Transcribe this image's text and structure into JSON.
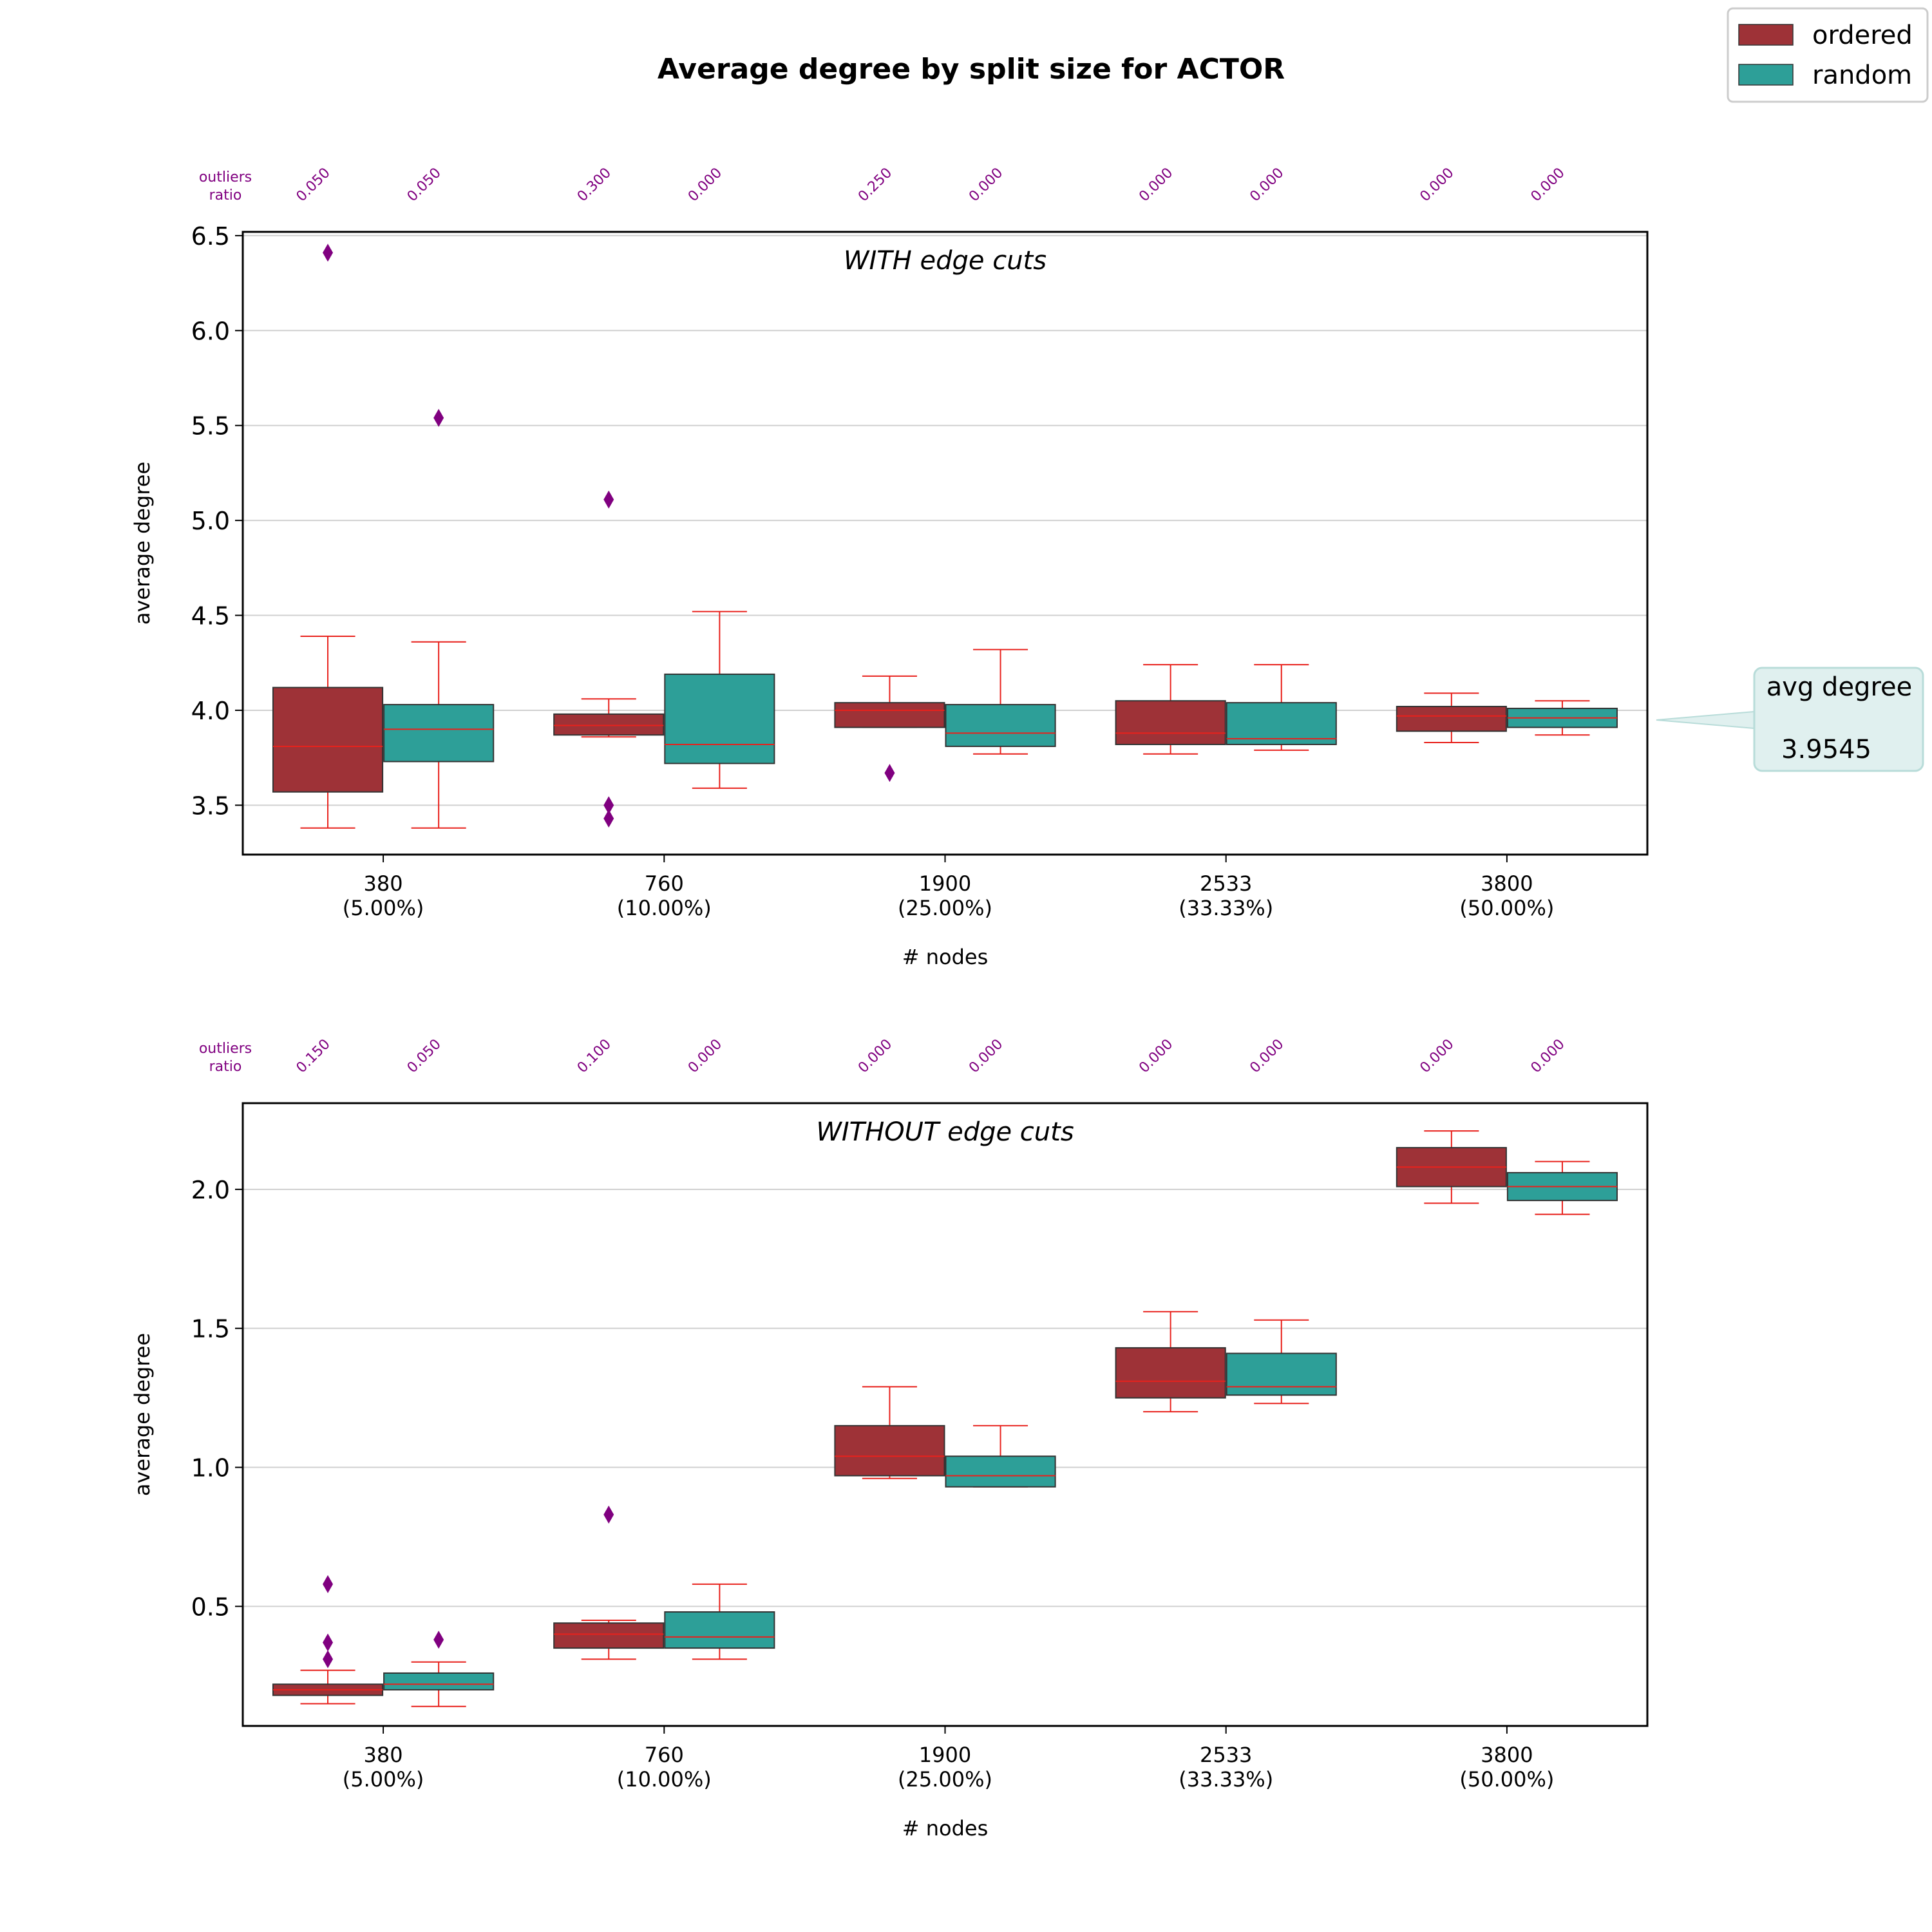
{
  "title": "Average degree by split size for ACTOR",
  "legend": {
    "position": "top-right",
    "items": [
      {
        "label": "ordered",
        "color": "#9e3237"
      },
      {
        "label": "random",
        "color": "#2d9f98"
      }
    ]
  },
  "callout": {
    "label": "avg degree",
    "value": "3.9545"
  },
  "colors": {
    "ordered": "#9e3237",
    "random": "#2d9f98",
    "whisker": "#e8211c",
    "outlier": "#800080",
    "callout_bg": "#e0f0ef"
  },
  "chart_data": [
    {
      "type": "box",
      "subtitle": "WITH edge cuts",
      "xlabel": "# nodes",
      "ylabel": "average degree",
      "ylim": [
        3.24,
        6.52
      ],
      "yticks": [
        "3.5",
        "4.0",
        "4.5",
        "5.0",
        "5.5",
        "6.0",
        "6.5"
      ],
      "categories": [
        {
          "count": "380",
          "pct": "(5.00%)"
        },
        {
          "count": "760",
          "pct": "(10.00%)"
        },
        {
          "count": "1900",
          "pct": "(25.00%)"
        },
        {
          "count": "2533",
          "pct": "(33.33%)"
        },
        {
          "count": "3800",
          "pct": "(50.00%)"
        }
      ],
      "outliers_label": [
        "outliers",
        "ratio"
      ],
      "outlier_ratios": [
        "0.050",
        "0.050",
        "0.300",
        "0.000",
        "0.250",
        "0.000",
        "0.000",
        "0.000",
        "0.000",
        "0.000"
      ],
      "series": [
        {
          "name": "ordered",
          "boxes": [
            {
              "min": 3.38,
              "q1": 3.57,
              "median": 3.81,
              "q3": 4.12,
              "max": 4.39,
              "outliers": [
                6.41
              ]
            },
            {
              "min": 3.86,
              "q1": 3.87,
              "median": 3.92,
              "q3": 3.98,
              "max": 4.06,
              "outliers": [
                5.11,
                3.5,
                3.43
              ]
            },
            {
              "min": 3.91,
              "q1": 3.91,
              "median": 4.0,
              "q3": 4.04,
              "max": 4.18,
              "outliers": [
                3.67
              ]
            },
            {
              "min": 3.77,
              "q1": 3.82,
              "median": 3.88,
              "q3": 4.05,
              "max": 4.24,
              "outliers": []
            },
            {
              "min": 3.83,
              "q1": 3.89,
              "median": 3.97,
              "q3": 4.02,
              "max": 4.09,
              "outliers": []
            }
          ]
        },
        {
          "name": "random",
          "boxes": [
            {
              "min": 3.38,
              "q1": 3.73,
              "median": 3.9,
              "q3": 4.03,
              "max": 4.36,
              "outliers": [
                5.54
              ]
            },
            {
              "min": 3.59,
              "q1": 3.72,
              "median": 3.82,
              "q3": 4.19,
              "max": 4.52,
              "outliers": []
            },
            {
              "min": 3.77,
              "q1": 3.81,
              "median": 3.88,
              "q3": 4.03,
              "max": 4.32,
              "outliers": []
            },
            {
              "min": 3.79,
              "q1": 3.82,
              "median": 3.85,
              "q3": 4.04,
              "max": 4.24,
              "outliers": []
            },
            {
              "min": 3.87,
              "q1": 3.91,
              "median": 3.96,
              "q3": 4.01,
              "max": 4.05,
              "outliers": []
            }
          ]
        }
      ]
    },
    {
      "type": "box",
      "subtitle": "WITHOUT edge cuts",
      "xlabel": "# nodes",
      "ylabel": "average degree",
      "ylim": [
        0.07,
        2.31
      ],
      "yticks": [
        "0.5",
        "1.0",
        "1.5",
        "2.0"
      ],
      "categories": [
        {
          "count": "380",
          "pct": "(5.00%)"
        },
        {
          "count": "760",
          "pct": "(10.00%)"
        },
        {
          "count": "1900",
          "pct": "(25.00%)"
        },
        {
          "count": "2533",
          "pct": "(33.33%)"
        },
        {
          "count": "3800",
          "pct": "(50.00%)"
        }
      ],
      "outliers_label": [
        "outliers",
        "ratio"
      ],
      "outlier_ratios": [
        "0.150",
        "0.050",
        "0.100",
        "0.000",
        "0.000",
        "0.000",
        "0.000",
        "0.000",
        "0.000",
        "0.000"
      ],
      "series": [
        {
          "name": "ordered",
          "boxes": [
            {
              "min": 0.15,
              "q1": 0.18,
              "median": 0.2,
              "q3": 0.22,
              "max": 0.27,
              "outliers": [
                0.58,
                0.37,
                0.31
              ]
            },
            {
              "min": 0.31,
              "q1": 0.35,
              "median": 0.4,
              "q3": 0.44,
              "max": 0.45,
              "outliers": [
                0.83
              ]
            },
            {
              "min": 0.96,
              "q1": 0.97,
              "median": 1.04,
              "q3": 1.15,
              "max": 1.29,
              "outliers": []
            },
            {
              "min": 1.2,
              "q1": 1.25,
              "median": 1.31,
              "q3": 1.43,
              "max": 1.56,
              "outliers": []
            },
            {
              "min": 1.95,
              "q1": 2.01,
              "median": 2.08,
              "q3": 2.15,
              "max": 2.21,
              "outliers": []
            }
          ]
        },
        {
          "name": "random",
          "boxes": [
            {
              "min": 0.14,
              "q1": 0.2,
              "median": 0.22,
              "q3": 0.26,
              "max": 0.3,
              "outliers": [
                0.38
              ]
            },
            {
              "min": 0.31,
              "q1": 0.35,
              "median": 0.39,
              "q3": 0.48,
              "max": 0.58,
              "outliers": []
            },
            {
              "min": 0.93,
              "q1": 0.93,
              "median": 0.97,
              "q3": 1.04,
              "max": 1.15,
              "outliers": []
            },
            {
              "min": 1.23,
              "q1": 1.26,
              "median": 1.29,
              "q3": 1.41,
              "max": 1.53,
              "outliers": []
            },
            {
              "min": 1.91,
              "q1": 1.96,
              "median": 2.01,
              "q3": 2.06,
              "max": 2.1,
              "outliers": []
            }
          ]
        }
      ]
    }
  ]
}
